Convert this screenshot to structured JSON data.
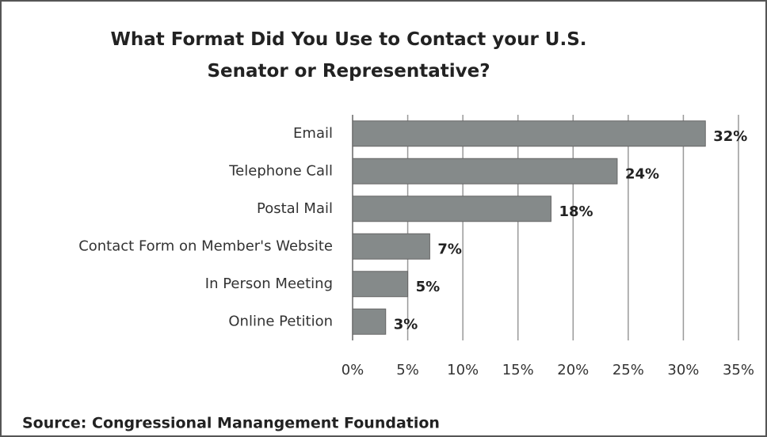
{
  "chart_data": {
    "type": "bar",
    "orientation": "horizontal",
    "title": "What Format Did You Use to Contact your U.S. Senator or Representative?",
    "categories": [
      "Email",
      "Telephone Call",
      "Postal Mail",
      "Contact Form on Member's Website",
      "In Person Meeting",
      "Online Petition"
    ],
    "values": [
      32,
      24,
      18,
      7,
      5,
      3
    ],
    "value_labels": [
      "32%",
      "24%",
      "18%",
      "7%",
      "5%",
      "3%"
    ],
    "color": "#858a8a",
    "xlim": [
      0,
      35
    ],
    "xticks": [
      {
        "value": 0,
        "label": "0%"
      },
      {
        "value": 5,
        "label": "5%"
      },
      {
        "value": 10,
        "label": "10%"
      },
      {
        "value": 15,
        "label": "15%"
      },
      {
        "value": 20,
        "label": "20%"
      },
      {
        "value": 25,
        "label": "25%"
      },
      {
        "value": 30,
        "label": "30%"
      },
      {
        "value": 35,
        "label": "35%"
      }
    ],
    "grid": true,
    "source": "Source: Congressional  Manangement Foundation"
  }
}
